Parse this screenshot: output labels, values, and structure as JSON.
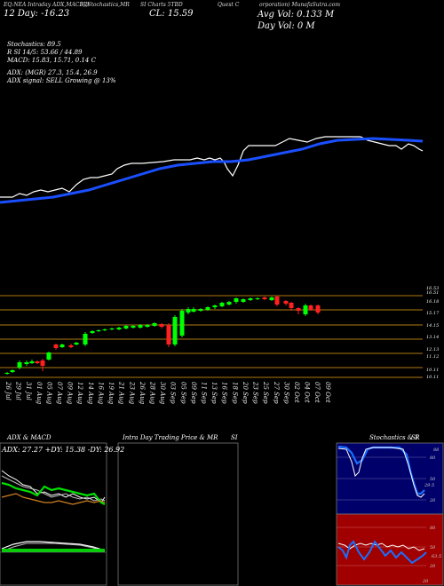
{
  "header": {
    "title_left": "EQ:NEA Intraday ADX,MACD,B",
    "title_mid": "SI,Stochastics,MR",
    "title_right": "SI Charts 5TBD",
    "title_company": "Quest C",
    "title_company2": "orporation) MunafaSutra.com",
    "day_range_label": "12 Day: -16.23",
    "close_label": "CL: 15.59",
    "avg_vol_label": "Avg Vol: 0.133 M",
    "day_vol_label": "Day Vol: 0   M"
  },
  "indicators": {
    "stochastics": "Stochastics: 89.5",
    "si": "R  SI 14/5: 53.66  / 44.89",
    "macd": "MACD: 15.83,  15.71,  0.14  C",
    "adx": "ADX:                        (MGR) 27.3,  15.4,  26.9",
    "adx_signal": "ADX  signal: SELL  Growing @ 13%"
  },
  "price_levels": [
    "16.53",
    "16.51",
    "16.18",
    "15.17",
    "14.15",
    "13.14",
    "12.13",
    "11.12",
    "10.11",
    "10.11"
  ],
  "date_labels": [
    "26 Jul",
    "29 Jul",
    "31 Jul",
    "01 Aug",
    "05 Aug",
    "07 Aug",
    "09 Aug",
    "12 Aug",
    "14 Aug",
    "16 Aug",
    "19 Aug",
    "21 Aug",
    "23 Aug",
    "26 Aug",
    "28 Aug",
    "30 Aug",
    "03 Sep",
    "05 Sep",
    "09 Sep",
    "11 Sep",
    "13 Sep",
    "16 Sep",
    "18 Sep",
    "20 Sep",
    "23 Sep",
    "25 Sep",
    "27 Sep",
    "30 Sep",
    "02 Oct",
    "04 Oct",
    "07 Oct",
    "09 Oct"
  ],
  "panels": {
    "adx_title": "ADX  & MACD",
    "adx_values": "ADX: 27.27  +DY: 15.38  -DY: 26.92",
    "intraday_title": "Intra  Day Trading Price  & MR",
    "intraday_title2": "SI",
    "stoch_title": "Stochastics & R",
    "stoch_title2": "SI",
    "stoch_ticks": [
      "80",
      "50",
      "20"
    ],
    "stoch_value": "88",
    "stoch_value2": "29.5",
    "rsi_ticks": [
      "80",
      "50",
      "20"
    ],
    "rsi_value": "20",
    "rsi_value2": "63.5"
  },
  "colors": {
    "ma_line": "#1a4fff",
    "price_line": "#ffffff",
    "bull_candle": "#00ff00",
    "bear_candle": "#ff2020",
    "level_line": "#b07a10",
    "rsi_bg": "#a00000",
    "stoch_bg": "#00006a",
    "adx_green": "#00e000",
    "adx_orange": "#d08020"
  }
}
